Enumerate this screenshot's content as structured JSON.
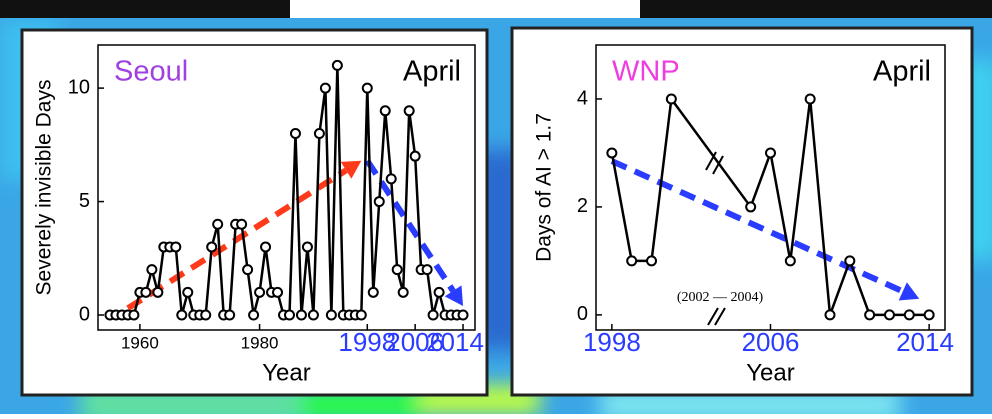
{
  "chart_data": [
    {
      "type": "line",
      "title": "Seoul",
      "title_color": "#a040e0",
      "subtitle": "April",
      "x_label": "Year",
      "y_label": "Severely invisible Days",
      "x": [
        1955,
        1956,
        1957,
        1958,
        1959,
        1960,
        1961,
        1962,
        1963,
        1964,
        1965,
        1966,
        1967,
        1968,
        1969,
        1970,
        1971,
        1972,
        1973,
        1974,
        1975,
        1976,
        1977,
        1978,
        1979,
        1980,
        1981,
        1982,
        1983,
        1984,
        1985,
        1986,
        1987,
        1988,
        1989,
        1990,
        1991,
        1992,
        1993,
        1994,
        1995,
        1996,
        1997,
        1998,
        1999,
        2000,
        2001,
        2002,
        2003,
        2004,
        2005,
        2006,
        2007,
        2008,
        2009,
        2010,
        2011,
        2012,
        2013,
        2014
      ],
      "values": [
        0,
        0,
        0,
        0,
        0,
        1,
        1,
        2,
        1,
        3,
        3,
        3,
        0,
        1,
        0,
        0,
        0,
        3,
        4,
        0,
        0,
        4,
        4,
        2,
        0,
        1,
        3,
        1,
        1,
        0,
        0,
        8,
        0,
        3,
        0,
        8,
        10,
        0,
        11,
        0,
        0,
        0,
        0,
        10,
        1,
        5,
        9,
        6,
        2,
        1,
        9,
        7,
        2,
        2,
        0,
        1,
        0,
        0,
        0,
        0
      ],
      "color": "#000000",
      "xlim": [
        1953,
        2016
      ],
      "ylim": [
        -0.66,
        11.9
      ],
      "xticks": [
        1960,
        1980,
        1998,
        2006,
        2014
      ],
      "xtick_colors": [
        "#000000",
        "#000000",
        "#2a3cff",
        "#2a3cff",
        "#2a3cff"
      ],
      "yticks": [
        0,
        5,
        10
      ],
      "trends": [
        {
          "x": [
            1958,
            1997
          ],
          "values": [
            0.3,
            6.8
          ],
          "color": "#ff3a1a"
        },
        {
          "x": [
            1998,
            2014
          ],
          "values": [
            6.8,
            0.4
          ],
          "color": "#2a3cff"
        }
      ]
    },
    {
      "type": "line",
      "title": "WNP",
      "title_color": "#ee3ee0",
      "subtitle": "April",
      "x_label": "Year",
      "y_label": "Days of AI > 1.7",
      "x": [
        1998,
        1999,
        2000,
        2001,
        2005,
        2006,
        2007,
        2008,
        2009,
        2010,
        2011,
        2012,
        2013,
        2014
      ],
      "values": [
        3,
        1,
        1,
        4,
        2,
        3,
        1,
        4,
        0,
        1,
        0,
        0,
        0,
        0
      ],
      "color": "#000000",
      "annotation": "(2002 — 2004)",
      "xlim": [
        1997.2,
        2014.8
      ],
      "ylim": [
        -0.28,
        5.0
      ],
      "xticks": [
        1998,
        2006,
        2014
      ],
      "xtick_colors": [
        "#2a3cff",
        "#2a3cff",
        "#2a3cff"
      ],
      "yticks": [
        0,
        2,
        4
      ],
      "trends": [
        {
          "x": [
            1998,
            2013.5
          ],
          "values": [
            2.85,
            0.3
          ],
          "color": "#2a3cff"
        }
      ]
    }
  ]
}
